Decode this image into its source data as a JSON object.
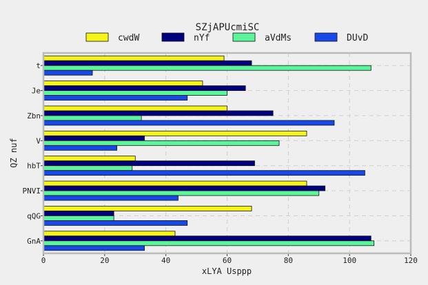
{
  "chart_data": {
    "type": "bar",
    "orientation": "horizontal",
    "title": "SZjAPUcmiSC",
    "xlabel": "xLYA Usppp",
    "ylabel": "QZ nuf",
    "categories": [
      "t",
      "Je",
      "Zbn",
      "V",
      "hbT",
      "PNVI",
      "qQG",
      "GnA"
    ],
    "xlim": [
      0,
      120
    ],
    "xticks": [
      "0",
      "20",
      "40",
      "60",
      "80",
      "100",
      "120"
    ],
    "grid": true,
    "legend_position": "top",
    "series": [
      {
        "name": "cwdW",
        "color": "#f5f51a",
        "values": [
          59,
          52,
          60,
          86,
          30,
          86,
          68,
          43
        ]
      },
      {
        "name": "nYf",
        "color": "#00007f",
        "values": [
          68,
          66,
          75,
          33,
          69,
          92,
          23,
          107
        ]
      },
      {
        "name": "aVdMs",
        "color": "#5cf59b",
        "values": [
          107,
          60,
          32,
          77,
          29,
          90,
          23,
          108
        ]
      },
      {
        "name": "DUvD",
        "color": "#1848e8",
        "values": [
          16,
          47,
          95,
          24,
          105,
          44,
          47,
          33
        ]
      }
    ]
  }
}
